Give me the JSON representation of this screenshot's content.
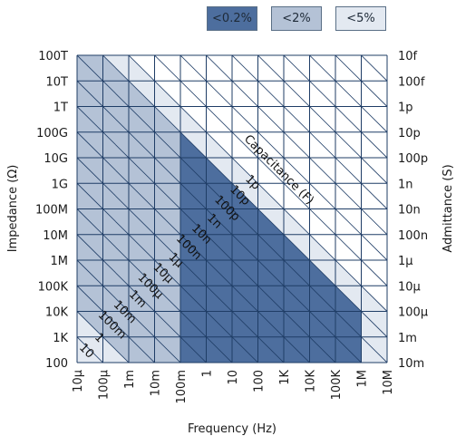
{
  "chart_data": {
    "type": "heatmap",
    "title": "",
    "xlabel": "Frequency (Hz)",
    "ylabel": "Impedance (Ω)",
    "ylabel_right": "Admittance (S)",
    "x_ticks": [
      "10μ",
      "100μ",
      "1m",
      "10m",
      "100m",
      "1",
      "10",
      "100",
      "1K",
      "10K",
      "100K",
      "1M",
      "10M"
    ],
    "x_log10": [
      -5,
      -4,
      -3,
      -2,
      -1,
      0,
      1,
      2,
      3,
      4,
      5,
      6,
      7
    ],
    "y_ticks_left": [
      "100T",
      "10T",
      "1T",
      "100G",
      "10G",
      "1G",
      "100M",
      "10M",
      "1M",
      "100K",
      "10K",
      "1K",
      "100"
    ],
    "y_ticks_right": [
      "10f",
      "100f",
      "1p",
      "10p",
      "100p",
      "1n",
      "10n",
      "100n",
      "1μ",
      "10μ",
      "100μ",
      "1m",
      "10m"
    ],
    "y_log10": [
      14,
      13,
      12,
      11,
      10,
      9,
      8,
      7,
      6,
      5,
      4,
      3,
      2
    ],
    "xlim_log10": [
      -5,
      7
    ],
    "ylim_log10": [
      2,
      14
    ],
    "grid": true,
    "legend_position": "top-right",
    "legend": [
      {
        "label": "<0.2%",
        "color": "#4d6e9e"
      },
      {
        "label": "<2%",
        "color": "#b4c2d6"
      },
      {
        "label": "<5%",
        "color": "#e3e9f1"
      }
    ],
    "regions": [
      {
        "name": "<5%",
        "polygon_log10": [
          [
            -5,
            14
          ],
          [
            -3,
            14
          ],
          [
            7,
            4
          ],
          [
            7,
            2
          ],
          [
            -5,
            2
          ]
        ]
      },
      {
        "name": "<2%",
        "polygon_log10": [
          [
            -5,
            14
          ],
          [
            -4,
            14
          ],
          [
            6,
            4
          ],
          [
            6,
            2
          ],
          [
            -3,
            2
          ],
          [
            -5,
            4
          ]
        ]
      },
      {
        "name": "<0.2%",
        "polygon_log10": [
          [
            -1,
            11
          ],
          [
            6,
            4
          ],
          [
            6,
            2
          ],
          [
            -1,
            2
          ]
        ]
      }
    ],
    "capacitance_axis_title": "Capacitance (F)",
    "capacitance_labels": [
      {
        "label": "1p",
        "y_log10": 12.2
      },
      {
        "label": "10p",
        "y_log10": 11.2
      },
      {
        "label": "100p",
        "y_log10": 10.2
      },
      {
        "label": "1n",
        "y_log10": 9.2
      },
      {
        "label": "10n",
        "y_log10": 8.2
      },
      {
        "label": "100n",
        "y_log10": 7.2
      },
      {
        "label": "1μ",
        "y_log10": 6.2
      },
      {
        "label": "10μ",
        "y_log10": 5.2
      },
      {
        "label": "100μ",
        "y_log10": 4.2
      },
      {
        "label": "1m",
        "y_log10": 3.2
      },
      {
        "label": "10m",
        "y_log10": 2.2
      },
      {
        "label": "100m",
        "y_log10": 1.2
      },
      {
        "label": "1",
        "y_log10": 0.2
      },
      {
        "label": "10",
        "y_log10": -0.8
      }
    ]
  }
}
